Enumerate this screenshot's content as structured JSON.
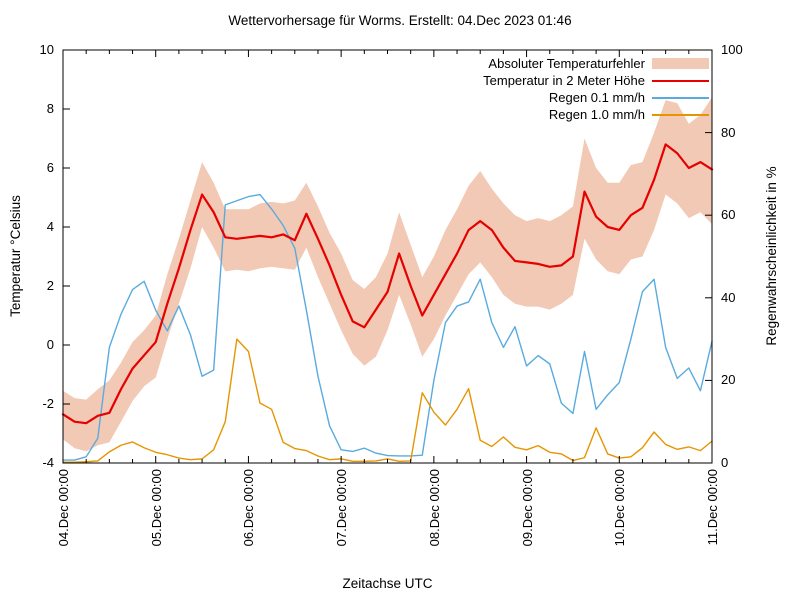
{
  "chart_data": {
    "type": "line",
    "title": "Wettervorhersage für Worms. Erstellt: 04.Dec 2023 01:46",
    "xlabel": "Zeitachse UTC",
    "ylabel_left": "Temperatur °Celsius",
    "ylabel_right": "Regenwahrscheinlichkeit in %",
    "ylim_left": [
      -4,
      10
    ],
    "ylim_right": [
      0,
      100
    ],
    "y_left_ticks": [
      10,
      8,
      6,
      4,
      2,
      0,
      -2,
      -4
    ],
    "y_right_ticks": [
      100,
      80,
      60,
      40,
      20,
      0
    ],
    "x_tick_labels": [
      "04.Dec 00:00",
      "05.Dec 00:00",
      "06.Dec 00:00",
      "07.Dec 00:00",
      "08.Dec 00:00",
      "09.Dec 00:00",
      "10.Dec 00:00",
      "11.Dec 00:00"
    ],
    "x_minor_tick_hours": 6,
    "grid": false,
    "legend_position": "top-right-inside",
    "sample_interval_hours": 3,
    "colors": {
      "band": "#f2c9b4",
      "temperature": "#e60000",
      "rain01": "#59abdf",
      "rain10": "#e69500",
      "frame": "#000000"
    },
    "legend": [
      {
        "label": "Absoluter Temperaturfehler",
        "type": "band",
        "color": "#f2c9b4"
      },
      {
        "label": "Temperatur in 2 Meter Höhe",
        "type": "line",
        "color": "#e60000"
      },
      {
        "label": "Regen 0.1 mm/h",
        "type": "line",
        "color": "#59abdf"
      },
      {
        "label": "Regen 1.0 mm/h",
        "type": "line",
        "color": "#e69500"
      }
    ],
    "series": {
      "error_band": {
        "name": "Absoluter Temperaturfehler",
        "axis": "left",
        "lo": [
          -3.2,
          -3.5,
          -3.6,
          -3.4,
          -3.3,
          -2.6,
          -1.9,
          -1.4,
          -1.1,
          0.2,
          1.4,
          2.6,
          4.0,
          3.3,
          2.5,
          2.55,
          2.5,
          2.6,
          2.65,
          2.6,
          2.55,
          3.3,
          2.3,
          1.4,
          0.5,
          -0.3,
          -0.7,
          -0.4,
          0.5,
          1.7,
          0.7,
          -0.4,
          0.2,
          1.0,
          1.7,
          2.4,
          2.8,
          2.3,
          1.7,
          1.4,
          1.3,
          1.3,
          1.2,
          1.4,
          1.7,
          3.6,
          2.9,
          2.5,
          2.4,
          2.9,
          3.0,
          3.9,
          5.1,
          4.8,
          4.3,
          4.5,
          4.1
        ],
        "hi": [
          -1.55,
          -1.8,
          -1.85,
          -1.5,
          -1.2,
          -0.6,
          0.1,
          0.5,
          1.0,
          2.4,
          3.6,
          4.9,
          6.2,
          5.5,
          4.6,
          4.6,
          4.6,
          4.8,
          4.85,
          4.8,
          4.9,
          5.5,
          4.7,
          3.8,
          3.1,
          2.2,
          1.9,
          2.3,
          3.1,
          4.5,
          3.4,
          2.3,
          3.0,
          3.9,
          4.6,
          5.4,
          5.9,
          5.3,
          4.8,
          4.4,
          4.2,
          4.3,
          4.2,
          4.4,
          4.7,
          7.0,
          6.0,
          5.5,
          5.5,
          6.1,
          6.2,
          7.2,
          8.3,
          8.2,
          7.5,
          7.8,
          8.4
        ]
      },
      "temperature": {
        "name": "Temperatur in 2 Meter Höhe",
        "axis": "left",
        "values": [
          -2.35,
          -2.6,
          -2.65,
          -2.4,
          -2.3,
          -1.5,
          -0.8,
          -0.35,
          0.1,
          1.4,
          2.6,
          3.9,
          5.1,
          4.5,
          3.65,
          3.6,
          3.65,
          3.7,
          3.65,
          3.75,
          3.55,
          4.45,
          3.6,
          2.7,
          1.7,
          0.8,
          0.6,
          1.2,
          1.8,
          3.1,
          2.0,
          1.0,
          1.7,
          2.4,
          3.1,
          3.9,
          4.2,
          3.9,
          3.3,
          2.85,
          2.8,
          2.75,
          2.65,
          2.7,
          3.0,
          5.2,
          4.35,
          4.0,
          3.9,
          4.4,
          4.65,
          5.6,
          6.8,
          6.5,
          6.0,
          6.2,
          5.95
        ]
      },
      "rain01": {
        "name": "Regen 0.1 mm/h",
        "axis": "right",
        "values": [
          0.7,
          0.7,
          1.5,
          6,
          28,
          36,
          42,
          44,
          37,
          32,
          38,
          31,
          21,
          22.5,
          62.5,
          63.5,
          64.5,
          65,
          61.5,
          57.5,
          52,
          37,
          21,
          9,
          3.2,
          2.8,
          3.6,
          2.4,
          1.8,
          1.7,
          1.7,
          1.9,
          20,
          34,
          38,
          39,
          44.5,
          34,
          28,
          33,
          23.5,
          26,
          24,
          14.5,
          12,
          27,
          13,
          16.5,
          19.5,
          30,
          41.5,
          44.5,
          28,
          20.5,
          23,
          17.5,
          29.5
        ]
      },
      "rain10": {
        "name": "Regen 1.0 mm/h",
        "axis": "right",
        "values": [
          0.2,
          0.2,
          0.3,
          0.5,
          2.7,
          4.3,
          5.1,
          3.7,
          2.6,
          2.0,
          1.2,
          0.8,
          1.0,
          3.2,
          10,
          30,
          27,
          14.5,
          13,
          5.0,
          3.5,
          3.0,
          1.7,
          0.8,
          1.0,
          0.4,
          0.4,
          0.5,
          1.0,
          0.4,
          0.5,
          17,
          12.3,
          9.2,
          13,
          18,
          5.5,
          4.0,
          6.3,
          3.8,
          3.2,
          4.2,
          2.6,
          2.2,
          0.6,
          1.3,
          8.5,
          2.2,
          1.2,
          1.5,
          3.7,
          7.5,
          4.5,
          3.3,
          3.9,
          3.0,
          5.3
        ]
      }
    }
  }
}
